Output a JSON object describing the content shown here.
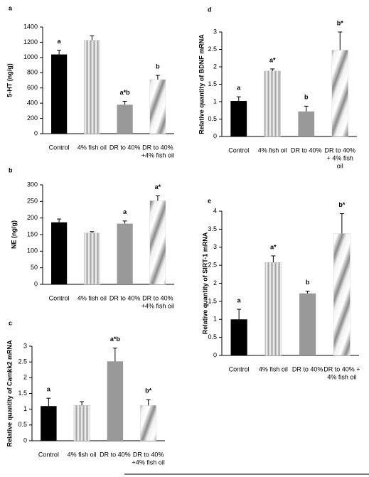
{
  "chart_data": [
    {
      "type": "bar",
      "title": "a",
      "y_label": "5-HT (ng/g)",
      "categories": [
        "Control",
        "4% fish oil",
        "DR to 40%",
        [
          "DR to 40%",
          "+4% fish oil"
        ]
      ],
      "values": [
        1040,
        1225,
        380,
        710
      ],
      "errors": [
        55,
        60,
        45,
        55
      ],
      "annotations": [
        "a",
        null,
        "a*b",
        "b"
      ],
      "colors": [
        "#000000",
        "#b8b8b8",
        "#999999",
        "#d0d0d0"
      ],
      "patterns": [
        null,
        "vertical-stripes",
        null,
        "diagonal-shading"
      ],
      "ylim": [
        0,
        1400
      ],
      "yticks": [
        0,
        200,
        400,
        600,
        800,
        1000,
        1200,
        1400
      ]
    },
    {
      "type": "bar",
      "title": "b",
      "y_label": "NE (ng/g)",
      "categories": [
        "Control",
        "4% fish oil",
        "DR to 40%",
        [
          "DR to 40%",
          "+4% fish oil"
        ]
      ],
      "values": [
        187,
        155,
        183,
        252
      ],
      "errors": [
        10,
        4,
        8,
        15
      ],
      "annotations": [
        null,
        null,
        "a",
        "a*"
      ],
      "colors": [
        "#000000",
        "#b8b8b8",
        "#999999",
        "#d0d0d0"
      ],
      "patterns": [
        null,
        "vertical-stripes",
        null,
        "diagonal-shading"
      ],
      "ylim": [
        0,
        300
      ],
      "yticks": [
        0,
        50,
        100,
        150,
        200,
        250,
        300
      ]
    },
    {
      "type": "bar",
      "title": "c",
      "y_label": "Relative quantity of Camkk2 mRNA",
      "categories": [
        "Control",
        "4% fish oil",
        "DR to 40%",
        [
          "DR to 40%",
          "+4% fish oil"
        ]
      ],
      "values": [
        1.1,
        1.12,
        2.52,
        1.12
      ],
      "errors": [
        0.25,
        0.12,
        0.42,
        0.18
      ],
      "annotations": [
        "a",
        null,
        "a*b",
        "b*"
      ],
      "colors": [
        "#000000",
        "#b8b8b8",
        "#999999",
        "#d0d0d0"
      ],
      "patterns": [
        null,
        "vertical-stripes",
        null,
        "diagonal-shading"
      ],
      "ylim": [
        0,
        3
      ],
      "yticks": [
        0,
        0.5,
        1,
        1.5,
        2,
        2.5,
        3
      ]
    },
    {
      "type": "bar",
      "title": "d",
      "y_label": "Relative quantity of BDNF mRNA",
      "categories": [
        "Control",
        "4% fish oil",
        "DR to 40%",
        [
          "DR to 40%",
          "+ 4% fish",
          "oil"
        ]
      ],
      "values": [
        1.02,
        1.88,
        0.72,
        2.48
      ],
      "errors": [
        0.12,
        0.06,
        0.15,
        0.52
      ],
      "annotations": [
        "a",
        "a*",
        "b",
        "b*"
      ],
      "colors": [
        "#000000",
        "#b8b8b8",
        "#999999",
        "#d0d0d0"
      ],
      "patterns": [
        null,
        "vertical-stripes",
        null,
        "diagonal-shading"
      ],
      "ylim": [
        0,
        3
      ],
      "yticks": [
        0,
        0.5,
        1,
        1.5,
        2,
        2.5,
        3
      ]
    },
    {
      "type": "bar",
      "title": "e",
      "y_label": "Relative quantity of SIRT-1 mRNA",
      "categories": [
        "Control",
        "4% fish oil",
        "DR to 40%",
        [
          "DR to 40% +",
          "4% fish oil"
        ]
      ],
      "values": [
        1.0,
        2.58,
        1.72,
        3.38
      ],
      "errors": [
        0.28,
        0.18,
        0.06,
        0.55
      ],
      "annotations": [
        "a",
        "a*",
        "b",
        "b*"
      ],
      "colors": [
        "#000000",
        "#b8b8b8",
        "#999999",
        "#d0d0d0"
      ],
      "patterns": [
        null,
        "vertical-stripes",
        null,
        "diagonal-shading"
      ],
      "ylim": [
        0,
        4
      ],
      "yticks": [
        0,
        0.5,
        1,
        1.5,
        2,
        2.5,
        3,
        3.5,
        4
      ]
    }
  ]
}
